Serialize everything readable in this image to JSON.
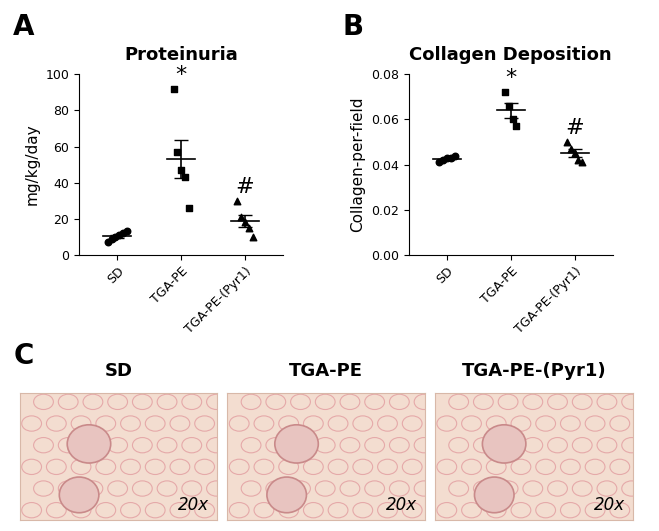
{
  "chart_data": [
    {
      "type": "scatter",
      "panel": "A",
      "title": "Proteinuria",
      "y_label": "mg/kg/day",
      "categories": [
        "SD",
        "TGA-PE",
        "TGA-PE-(Pyr1)"
      ],
      "values": [
        [
          7,
          9,
          10,
          11,
          12,
          13
        ],
        [
          92,
          57,
          47,
          43,
          26
        ],
        [
          30,
          21,
          18,
          15,
          10
        ]
      ],
      "mean": [
        10.3,
        53,
        18.8
      ],
      "error": [
        0.9,
        10.5,
        3.4
      ],
      "marker": [
        "circle",
        "square",
        "triangle"
      ],
      "annotations": [
        null,
        "*",
        "#"
      ],
      "color": "#000000",
      "ylim": [
        0,
        100
      ],
      "yticks": [
        0,
        20,
        40,
        60,
        80,
        100
      ]
    },
    {
      "type": "scatter",
      "panel": "B",
      "title": "Collagen Deposition",
      "y_label": "Collagen-per-field",
      "categories": [
        "SD",
        "TGA-PE",
        "TGA-PE-(Pyr1)"
      ],
      "values": [
        [
          0.041,
          0.042,
          0.043,
          0.043,
          0.044
        ],
        [
          0.072,
          0.066,
          0.06,
          0.057
        ],
        [
          0.05,
          0.047,
          0.045,
          0.042,
          0.041
        ]
      ],
      "mean": [
        0.0426,
        0.064,
        0.045
      ],
      "error": [
        0.0005,
        0.0035,
        0.0017
      ],
      "marker": [
        "circle",
        "square",
        "triangle"
      ],
      "annotations": [
        null,
        "*",
        "#"
      ],
      "color": "#000000",
      "ylim": [
        0,
        0.08
      ],
      "yticks": [
        {
          "value": 0,
          "label": "0.00"
        },
        {
          "value": 0.02,
          "label": "0.02"
        },
        {
          "value": 0.04,
          "label": "0.04"
        },
        {
          "value": 0.06,
          "label": "0.06"
        },
        {
          "value": 0.08,
          "label": "0.08"
        }
      ]
    }
  ],
  "panel_c": {
    "panel": "C",
    "images": [
      {
        "label": "SD",
        "magnification": "20x"
      },
      {
        "label": "TGA-PE",
        "magnification": "20x"
      },
      {
        "label": "TGA-PE-(Pyr1)",
        "magnification": "20x"
      }
    ]
  }
}
